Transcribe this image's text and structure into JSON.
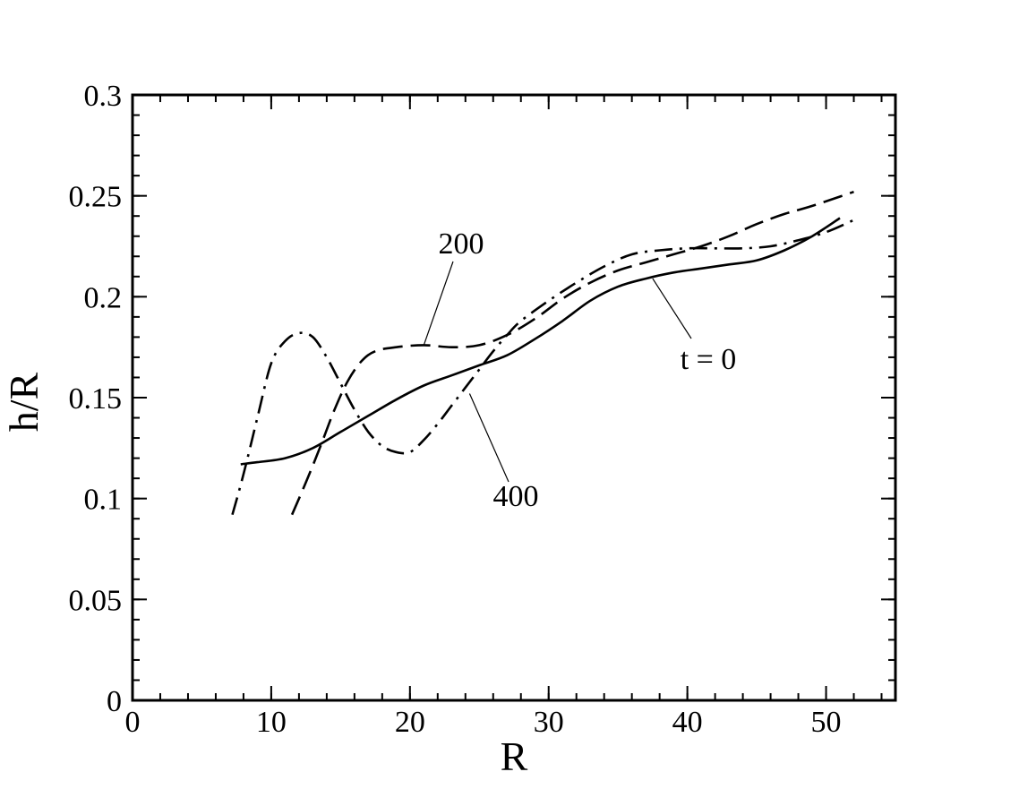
{
  "chart_data": {
    "type": "line",
    "xlabel": "R",
    "ylabel": "h/R",
    "xlim": [
      0,
      55
    ],
    "ylim": [
      0,
      0.3
    ],
    "x_ticks": [
      0,
      10,
      20,
      30,
      40,
      50
    ],
    "x_tick_labels": [
      "0",
      "10",
      "20",
      "30",
      "40",
      "50"
    ],
    "y_ticks": [
      0,
      0.05,
      0.1,
      0.15,
      0.2,
      0.25,
      0.3
    ],
    "y_tick_labels": [
      "0",
      "0.05",
      "0.1",
      "0.15",
      "0.2",
      "0.25",
      "0.3"
    ],
    "x_minor_step": 2,
    "y_minor_step": 0.01,
    "grid": false,
    "legend": "none",
    "series": [
      {
        "label": "t = 0",
        "line_style": "solid",
        "color": "#000000",
        "x": [
          7.8,
          9,
          11,
          13,
          15,
          17,
          19,
          21,
          23,
          25,
          27,
          29,
          31,
          33,
          35,
          37,
          39,
          41,
          43,
          45,
          47,
          49,
          51
        ],
        "y": [
          0.117,
          0.118,
          0.12,
          0.125,
          0.133,
          0.141,
          0.149,
          0.156,
          0.161,
          0.166,
          0.171,
          0.179,
          0.188,
          0.198,
          0.205,
          0.209,
          0.212,
          0.214,
          0.216,
          0.218,
          0.223,
          0.23,
          0.239
        ]
      },
      {
        "label": "200",
        "line_style": "dashed",
        "color": "#000000",
        "x": [
          11.5,
          12.5,
          13.5,
          14.5,
          15.5,
          16.5,
          17.5,
          19,
          21,
          23,
          25,
          27,
          29,
          31,
          33,
          35,
          37,
          39,
          41,
          43,
          45,
          47,
          49,
          52
        ],
        "y": [
          0.092,
          0.108,
          0.125,
          0.143,
          0.158,
          0.168,
          0.173,
          0.175,
          0.176,
          0.175,
          0.176,
          0.181,
          0.189,
          0.199,
          0.207,
          0.213,
          0.217,
          0.221,
          0.225,
          0.23,
          0.236,
          0.241,
          0.245,
          0.252
        ]
      },
      {
        "label": "400",
        "line_style": "dashdot",
        "color": "#000000",
        "x": [
          7.2,
          8,
          9,
          10,
          11,
          12,
          13,
          14,
          15,
          16,
          17,
          18,
          19,
          20,
          21,
          22,
          23,
          24,
          25,
          26,
          27,
          28,
          30,
          32,
          34,
          36,
          38,
          40,
          42,
          44,
          46,
          48,
          50,
          52
        ],
        "y": [
          0.092,
          0.112,
          0.14,
          0.167,
          0.178,
          0.182,
          0.18,
          0.17,
          0.157,
          0.144,
          0.133,
          0.126,
          0.123,
          0.123,
          0.129,
          0.137,
          0.146,
          0.155,
          0.164,
          0.173,
          0.181,
          0.188,
          0.198,
          0.207,
          0.215,
          0.221,
          0.223,
          0.224,
          0.224,
          0.224,
          0.225,
          0.228,
          0.232,
          0.238
        ]
      }
    ],
    "annotations": [
      {
        "text": "200",
        "series": "200",
        "point": [
          21,
          0.176
        ]
      },
      {
        "text": "400",
        "series": "400",
        "point": [
          24.3,
          0.152
        ]
      },
      {
        "text": "t = 0",
        "series": "t = 0",
        "point": [
          37.5,
          0.209
        ]
      }
    ]
  }
}
